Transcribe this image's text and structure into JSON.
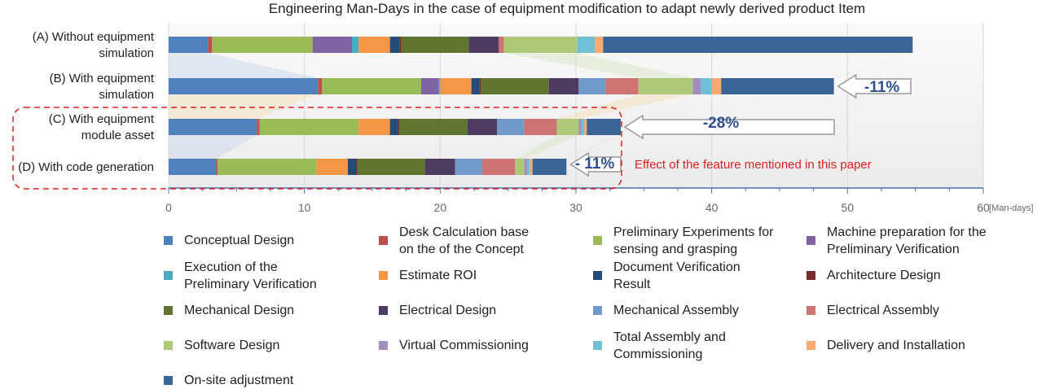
{
  "chart_data": {
    "type": "bar",
    "orientation": "horizontal",
    "stacked": true,
    "title": "Engineering Man-Days in the case of equipment modification to adapt newly derived product Item",
    "xlabel": "",
    "x_unit": "[Man-days]",
    "ylabel": "",
    "xlim": [
      0,
      60
    ],
    "x_ticks": [
      "0",
      "10",
      "20",
      "30",
      "40",
      "50",
      "60"
    ],
    "grid": true,
    "legend_position": "bottom",
    "categories": [
      "(A) Without equipment\nsimulation",
      "(B) With equipment\nsimulation",
      "(C) With equipment\nmodule asset",
      "(D) With code generation"
    ],
    "series": [
      {
        "name": "Conceptual Design",
        "color": "#4f81bd",
        "values": [
          2.9,
          11.0,
          6.5,
          3.5
        ]
      },
      {
        "name": "Desk Calculation base\non the of the Concept",
        "color": "#c0504d",
        "values": [
          0.3,
          0.3,
          0.2,
          0.1
        ]
      },
      {
        "name": "Preliminary Experiments for\nsensing and grasping",
        "color": "#9bbb59",
        "values": [
          7.4,
          7.3,
          7.3,
          7.3
        ]
      },
      {
        "name": "Machine preparation for the\nPreliminary Verification",
        "color": "#8064a2",
        "values": [
          2.9,
          1.3,
          0,
          0
        ]
      },
      {
        "name": "Execution of the\nPreliminary Verification",
        "color": "#4bacc6",
        "values": [
          0.5,
          0.1,
          0,
          0
        ]
      },
      {
        "name": "Estimate ROI",
        "color": "#f79646",
        "values": [
          2.3,
          2.3,
          2.3,
          2.3
        ]
      },
      {
        "name": "Document Verification\nResult",
        "color": "#254b7a",
        "values": [
          0.7,
          0.6,
          0.6,
          0.6
        ]
      },
      {
        "name": "Architecture Design",
        "color": "#772c2a",
        "values": [
          0.1,
          0.1,
          0.1,
          0.1
        ]
      },
      {
        "name": "Mechanical Design",
        "color": "#5f7530",
        "values": [
          5.0,
          5.0,
          5.0,
          5.0
        ]
      },
      {
        "name": "Electrical Design",
        "color": "#4d3b62",
        "values": [
          2.2,
          2.2,
          2.2,
          2.2
        ]
      },
      {
        "name": "Mechanical Assembly",
        "color": "#729aca",
        "values": [
          0,
          2.0,
          2.0,
          2.0
        ]
      },
      {
        "name": "Electrical Assembly",
        "color": "#cd7371",
        "values": [
          0.4,
          2.4,
          2.4,
          2.4
        ]
      },
      {
        "name": "Software Design",
        "color": "#afc97a",
        "values": [
          5.4,
          4.0,
          1.6,
          0.7
        ]
      },
      {
        "name": "Virtual Commissioning",
        "color": "#a28dbd",
        "values": [
          0,
          0.6,
          0.2,
          0.2
        ]
      },
      {
        "name": "Total Assembly and\nCommissioning",
        "color": "#6fc0d6",
        "values": [
          1.3,
          0.8,
          0.2,
          0.2
        ]
      },
      {
        "name": "Delivery and Installation",
        "color": "#f9ab6f",
        "values": [
          0.6,
          0.7,
          0.2,
          0.2
        ]
      },
      {
        "name": "On-site adjustment",
        "color": "#3a6396",
        "values": [
          22.8,
          8.3,
          2.5,
          2.5
        ]
      }
    ],
    "annotations": [
      {
        "text": "-11%",
        "row": 1
      },
      {
        "text": "-28%",
        "row": 2
      },
      {
        "text": "- 11%",
        "row": 3
      },
      {
        "text": "Effect of  the feature mentioned in this paper"
      }
    ]
  }
}
